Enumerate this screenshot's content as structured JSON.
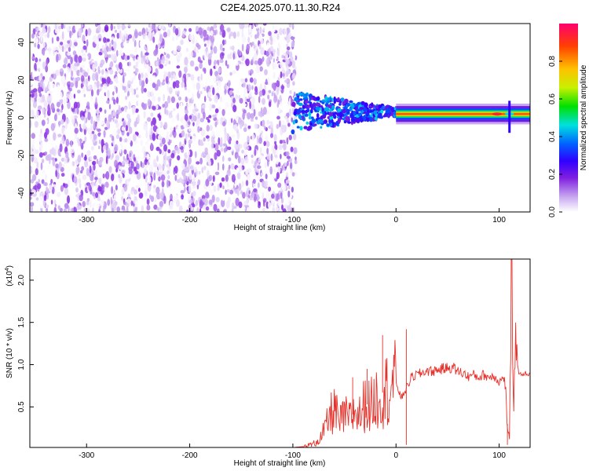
{
  "title": "C2E4.2025.070.11.30.R24",
  "chart_data": [
    {
      "type": "heatmap",
      "xlabel": "Height of straight line (km)",
      "ylabel": "Frequency (Hz)",
      "xlim": [
        -355,
        130
      ],
      "ylim": [
        -50,
        50
      ],
      "xticks": [
        -300,
        -200,
        -100,
        0,
        100
      ],
      "yticks": [
        -40,
        -20,
        0,
        20,
        40
      ],
      "colorbar": {
        "label": "Normalized spectral amplitude",
        "range": [
          0,
          1
        ],
        "ticks": [
          "0.0",
          "0.2",
          "0.4",
          "0.6",
          "0.8"
        ],
        "colormap": [
          "#ffffff",
          "#c8a8f0",
          "#8020e0",
          "#3000ff",
          "#0060ff",
          "#00e0e0",
          "#00e000",
          "#c8f000",
          "#ffc000",
          "#ff4000",
          "#ff0070"
        ]
      },
      "regions": [
        {
          "name": "noise",
          "x": [
            -355,
            -100
          ],
          "y": [
            -50,
            50
          ],
          "amplitude": [
            0.0,
            0.2
          ]
        },
        {
          "name": "transition",
          "x": [
            -100,
            0
          ],
          "y": [
            -8,
            12
          ],
          "amplitude": [
            0.2,
            0.5
          ]
        },
        {
          "name": "carrier",
          "x": [
            0,
            130
          ],
          "y_center": 2,
          "amplitude_peak": 0.95
        }
      ],
      "grid": false
    },
    {
      "type": "line",
      "xlabel": "Height of straight line (km)",
      "ylabel": "SNR (10 * v/v)",
      "multiplier_label": "(x10",
      "multiplier_exp": "4",
      "multiplier_close": ")",
      "xlim": [
        -355,
        130
      ],
      "ylim": [
        0.02,
        2.25
      ],
      "xticks": [
        -300,
        -200,
        -100,
        0,
        100
      ],
      "yticks": [
        0.5,
        1.0,
        1.5,
        2.0
      ],
      "color": "#e8312a",
      "points": [
        [
          -355,
          0.02
        ],
        [
          -100,
          0.02
        ],
        [
          -90,
          0.03
        ],
        [
          -80,
          0.06
        ],
        [
          -72,
          0.15
        ],
        [
          -65,
          0.35
        ],
        [
          -60,
          0.5
        ],
        [
          -55,
          0.3
        ],
        [
          -50,
          0.4
        ],
        [
          -45,
          0.35
        ],
        [
          -40,
          0.45
        ],
        [
          -35,
          0.4
        ],
        [
          -30,
          0.55
        ],
        [
          -25,
          0.5
        ],
        [
          -20,
          0.6
        ],
        [
          -15,
          0.65
        ],
        [
          -10,
          0.7
        ],
        [
          -5,
          0.75
        ],
        [
          0,
          0.8
        ],
        [
          5,
          0.6
        ],
        [
          10,
          0.72
        ],
        [
          15,
          0.85
        ],
        [
          20,
          0.88
        ],
        [
          25,
          0.9
        ],
        [
          30,
          0.93
        ],
        [
          35,
          0.92
        ],
        [
          40,
          0.94
        ],
        [
          45,
          0.95
        ],
        [
          50,
          0.96
        ],
        [
          55,
          0.97
        ],
        [
          60,
          0.92
        ],
        [
          65,
          0.9
        ],
        [
          70,
          0.86
        ],
        [
          75,
          0.88
        ],
        [
          80,
          0.85
        ],
        [
          85,
          0.88
        ],
        [
          90,
          0.85
        ],
        [
          95,
          0.87
        ],
        [
          100,
          0.8
        ],
        [
          105,
          0.85
        ],
        [
          108,
          0.3
        ],
        [
          110,
          0.1
        ],
        [
          112,
          2.2
        ],
        [
          114,
          0.2
        ],
        [
          116,
          1.65
        ],
        [
          118,
          0.95
        ],
        [
          120,
          0.88
        ],
        [
          125,
          0.9
        ],
        [
          130,
          0.88
        ]
      ],
      "spikes": [
        {
          "x": -60,
          "y": 0.66
        },
        {
          "x": -42,
          "y": 0.85
        },
        {
          "x": -28,
          "y": 0.95
        },
        {
          "x": -13,
          "y": 1.35
        },
        {
          "x": 10,
          "y": 1.42
        },
        {
          "x": 10,
          "y": 0.05
        },
        {
          "x": 108,
          "y": 0.05
        }
      ],
      "grid": false
    }
  ]
}
